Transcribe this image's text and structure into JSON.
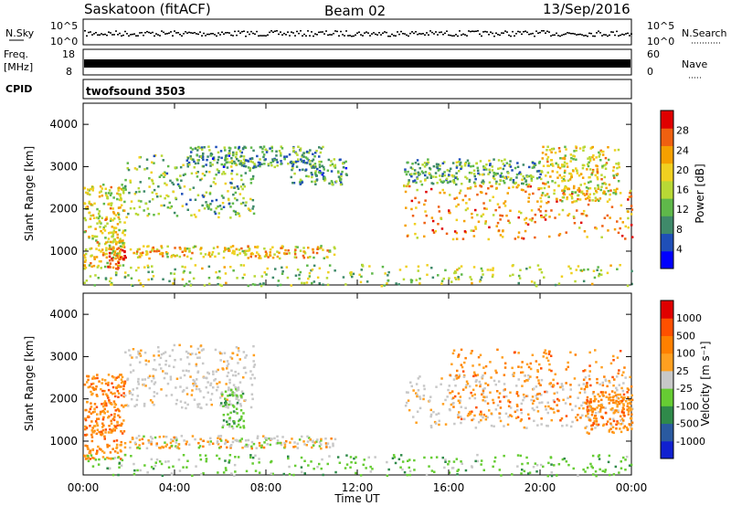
{
  "header": {
    "station": "Saskatoon (fitACF)",
    "beam": "Beam 02",
    "date": "13/Sep/2016"
  },
  "status_panels": {
    "nsky_label": "N.Sky",
    "nsky_ticks": [
      "10^5",
      "10^0"
    ],
    "nsearch_label": "N.Search",
    "freq_label_1": "Freq.",
    "freq_label_2": "[MHz]",
    "freq_ticks": [
      "18",
      "8"
    ],
    "nave_ticks": [
      "60",
      "0"
    ],
    "nave_label": "Nave",
    "cpid_label": "CPID",
    "cpid_value": "twofsound 3503"
  },
  "chart_data": [
    {
      "type": "heatmap",
      "panel": "power",
      "ylabel": "Slant Range [km]",
      "ylim": [
        200,
        4500
      ],
      "xlim_hours": [
        0,
        24
      ],
      "yticks": [
        "4000",
        "3000",
        "2000",
        "1000"
      ],
      "colorbar": {
        "label": "Power [dB]",
        "ticks": [
          "28",
          "24",
          "20",
          "16",
          "12",
          "8",
          "4"
        ],
        "colors": [
          "#0000ff",
          "#1f4fb8",
          "#3f8a6a",
          "#5fb84a",
          "#b8d835",
          "#f0d020",
          "#f5a000",
          "#ef6010",
          "#e00000"
        ]
      },
      "scatter_regions": [
        {
          "t0": 0.0,
          "t1": 1.8,
          "r0": 600,
          "r1": 2600,
          "level": 0.6
        },
        {
          "t0": 1.0,
          "t1": 1.9,
          "r0": 600,
          "r1": 1100,
          "level": 0.95
        },
        {
          "t0": 1.8,
          "t1": 7.5,
          "r0": 1800,
          "r1": 3300,
          "level": 0.4
        },
        {
          "t0": 2.0,
          "t1": 11.0,
          "r0": 850,
          "r1": 1150,
          "level": 0.65
        },
        {
          "t0": 4.5,
          "t1": 10.5,
          "r0": 3000,
          "r1": 3500,
          "level": 0.3
        },
        {
          "t0": 9.0,
          "t1": 11.5,
          "r0": 2600,
          "r1": 3200,
          "level": 0.3
        },
        {
          "t0": 0.0,
          "t1": 24.0,
          "r0": 200,
          "r1": 700,
          "level": 0.45
        },
        {
          "t0": 14.0,
          "t1": 24.0,
          "r0": 1300,
          "r1": 2600,
          "level": 0.75
        },
        {
          "t0": 14.0,
          "t1": 20.0,
          "r0": 2600,
          "r1": 3200,
          "level": 0.35
        },
        {
          "t0": 20.0,
          "t1": 23.5,
          "r0": 2200,
          "r1": 3500,
          "level": 0.6
        }
      ]
    },
    {
      "type": "heatmap",
      "panel": "velocity",
      "ylabel": "Slant Range [km]",
      "ylim": [
        200,
        4500
      ],
      "xlim_hours": [
        0,
        24
      ],
      "yticks": [
        "4000",
        "3000",
        "2000",
        "1000"
      ],
      "xticks": [
        "00:00",
        "04:00",
        "08:00",
        "12:00",
        "16:00",
        "20:00",
        "00:00"
      ],
      "xlabel": "Time UT",
      "colorbar": {
        "label": "Velocity [m s⁻¹]",
        "ticks": [
          "1000",
          "500",
          "100",
          "25",
          "-25",
          "-100",
          "-500",
          "-1000"
        ],
        "colors": [
          "#1020d0",
          "#2a5aa0",
          "#2f8a4a",
          "#66cc33",
          "#c8c8c8",
          "#ffa020",
          "#ff8000",
          "#ff5000",
          "#e00000"
        ]
      },
      "scatter_regions": [
        {
          "t0": 0.0,
          "t1": 1.8,
          "r0": 600,
          "r1": 2600,
          "level": "orange"
        },
        {
          "t0": 1.8,
          "t1": 7.5,
          "r0": 1800,
          "r1": 3300,
          "level": "gray"
        },
        {
          "t0": 2.0,
          "t1": 11.0,
          "r0": 850,
          "r1": 1150,
          "level": "mixed"
        },
        {
          "t0": 6.0,
          "t1": 7.0,
          "r0": 1300,
          "r1": 2300,
          "level": "green"
        },
        {
          "t0": 0.0,
          "t1": 24.0,
          "r0": 200,
          "r1": 700,
          "level": "green"
        },
        {
          "t0": 14.0,
          "t1": 24.0,
          "r0": 1300,
          "r1": 2600,
          "level": "gray"
        },
        {
          "t0": 16.0,
          "t1": 24.0,
          "r0": 1500,
          "r1": 3200,
          "level": "orange"
        },
        {
          "t0": 22.0,
          "t1": 24.0,
          "r0": 1200,
          "r1": 2200,
          "level": "orange"
        }
      ]
    }
  ]
}
